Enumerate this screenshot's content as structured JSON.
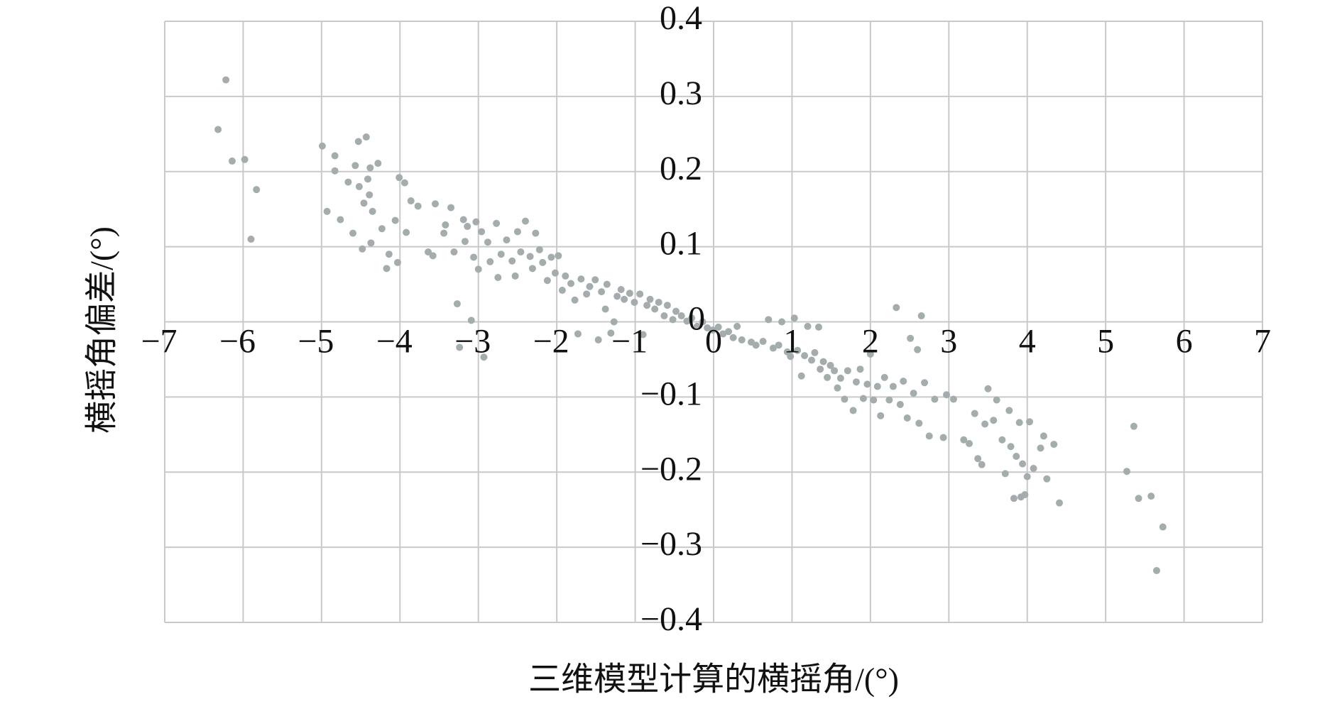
{
  "chart_data": {
    "type": "scatter",
    "x_label": "三维模型计算的横摇角/(°)",
    "y_label": "横摇角偏差/(°)",
    "color": "#a4acae",
    "grid": true,
    "xlim": [
      -7,
      7
    ],
    "ylim": [
      -0.4,
      0.4
    ],
    "xticks": [
      {
        "value": -7,
        "label": "−7"
      },
      {
        "value": -6,
        "label": "−6"
      },
      {
        "value": -5,
        "label": "−5"
      },
      {
        "value": -4,
        "label": "−4"
      },
      {
        "value": -3,
        "label": "−3"
      },
      {
        "value": -2,
        "label": "−2"
      },
      {
        "value": -1,
        "label": "−1"
      },
      0,
      1,
      2,
      3,
      4,
      5,
      6,
      7
    ],
    "yticks": [
      {
        "value": -0.4,
        "label": "−0.4"
      },
      {
        "value": -0.3,
        "label": "−0.3"
      },
      {
        "value": -0.2,
        "label": "−0.2"
      },
      {
        "value": -0.1,
        "label": "−0.1"
      },
      0,
      0.1,
      0.2,
      0.3,
      0.4
    ],
    "x": [
      -6.32,
      -6.22,
      -6.14,
      -5.98,
      -5.9,
      -5.83,
      -4.99,
      -4.93,
      -4.83,
      -4.83,
      -4.76,
      -4.66,
      -4.6,
      -4.57,
      -4.53,
      -4.52,
      -4.48,
      -4.46,
      -4.43,
      -4.41,
      -4.39,
      -4.38,
      -4.37,
      -4.35,
      -4.28,
      -4.23,
      -4.17,
      -4.14,
      -4.06,
      -4.03,
      -4.01,
      -3.94,
      -3.92,
      -3.86,
      -3.77,
      -3.64,
      -3.58,
      -3.55,
      -3.44,
      -3.42,
      -3.35,
      -3.31,
      -3.27,
      -3.24,
      -3.19,
      -3.17,
      -3.14,
      -3.09,
      -3.06,
      -3.03,
      -3.0,
      -2.96,
      -2.93,
      -2.88,
      -2.85,
      -2.77,
      -2.75,
      -2.71,
      -2.64,
      -2.57,
      -2.53,
      -2.5,
      -2.46,
      -2.4,
      -2.34,
      -2.31,
      -2.27,
      -2.22,
      -2.18,
      -2.12,
      -2.07,
      -2.02,
      -1.98,
      -1.93,
      -1.89,
      -1.82,
      -1.77,
      -1.73,
      -1.69,
      -1.62,
      -1.58,
      -1.51,
      -1.47,
      -1.43,
      -1.38,
      -1.36,
      -1.31,
      -1.27,
      -1.23,
      -1.18,
      -1.14,
      -1.07,
      -1.01,
      -0.94,
      -0.9,
      -0.85,
      -0.81,
      -0.75,
      -0.7,
      -0.63,
      -0.59,
      -0.52,
      -0.48,
      -0.41,
      -0.34,
      -0.28,
      -0.21,
      -0.14,
      -0.08,
      -0.01,
      0.06,
      0.12,
      0.19,
      0.25,
      0.3,
      0.36,
      0.48,
      0.54,
      0.63,
      0.7,
      0.76,
      0.83,
      0.87,
      0.94,
      0.98,
      1.03,
      1.07,
      1.12,
      1.16,
      1.2,
      1.25,
      1.29,
      1.34,
      1.36,
      1.4,
      1.45,
      1.49,
      1.54,
      1.58,
      1.62,
      1.67,
      1.71,
      1.78,
      1.82,
      1.87,
      1.91,
      1.96,
      2.0,
      2.04,
      2.09,
      2.13,
      2.18,
      2.24,
      2.29,
      2.33,
      2.38,
      2.42,
      2.47,
      2.51,
      2.55,
      2.6,
      2.62,
      2.65,
      2.69,
      2.75,
      2.82,
      2.93,
      2.97,
      3.06,
      3.19,
      3.26,
      3.33,
      3.37,
      3.42,
      3.46,
      3.5,
      3.57,
      3.61,
      3.68,
      3.72,
      3.77,
      3.79,
      3.83,
      3.86,
      3.9,
      3.92,
      3.94,
      3.97,
      4.0,
      4.03,
      4.08,
      4.17,
      4.21,
      4.25,
      4.34,
      4.41,
      5.27,
      5.36,
      5.42,
      5.58,
      5.65,
      5.73
    ],
    "series": [
      {
        "values": [
          0.256,
          0.322,
          0.214,
          0.216,
          0.11,
          0.176,
          0.234,
          0.147,
          0.221,
          0.201,
          0.136,
          0.186,
          0.118,
          0.208,
          0.24,
          0.18,
          0.097,
          0.158,
          0.246,
          0.19,
          0.169,
          0.205,
          0.105,
          0.147,
          0.211,
          0.124,
          0.071,
          0.09,
          0.135,
          0.079,
          0.192,
          0.185,
          0.119,
          0.161,
          0.154,
          0.093,
          0.088,
          0.157,
          0.118,
          0.129,
          0.152,
          0.093,
          0.024,
          -0.034,
          0.136,
          0.107,
          0.127,
          0.002,
          0.086,
          0.133,
          0.07,
          0.12,
          -0.047,
          0.106,
          0.08,
          0.131,
          0.059,
          0.09,
          0.109,
          0.081,
          0.061,
          0.12,
          0.093,
          0.134,
          0.087,
          0.071,
          0.118,
          0.096,
          0.079,
          0.055,
          0.086,
          0.065,
          0.088,
          0.042,
          0.061,
          0.051,
          0.029,
          -0.016,
          0.057,
          0.037,
          0.047,
          0.056,
          -0.024,
          0.04,
          0.017,
          0.05,
          -0.015,
          0.0,
          0.034,
          0.043,
          0.03,
          0.038,
          0.026,
          0.037,
          -0.017,
          0.022,
          0.03,
          0.017,
          0.026,
          0.008,
          0.022,
          0.003,
          0.014,
          0.008,
          0.001,
          0.005,
          -0.006,
          0.0,
          -0.008,
          -0.011,
          -0.007,
          -0.016,
          -0.013,
          -0.021,
          -0.006,
          -0.024,
          -0.027,
          -0.031,
          -0.026,
          0.003,
          -0.035,
          -0.031,
          0.0,
          -0.04,
          -0.046,
          0.005,
          -0.038,
          -0.072,
          -0.045,
          -0.006,
          -0.051,
          -0.041,
          -0.007,
          -0.063,
          -0.053,
          -0.074,
          -0.058,
          -0.065,
          -0.088,
          -0.075,
          -0.103,
          -0.065,
          -0.118,
          -0.08,
          -0.063,
          -0.102,
          -0.083,
          -0.043,
          -0.104,
          -0.086,
          -0.125,
          -0.074,
          -0.104,
          -0.086,
          0.019,
          -0.11,
          -0.079,
          -0.128,
          -0.022,
          -0.095,
          -0.037,
          -0.135,
          0.008,
          -0.081,
          -0.152,
          -0.103,
          -0.154,
          -0.097,
          -0.103,
          -0.157,
          -0.162,
          -0.122,
          -0.182,
          -0.19,
          -0.136,
          -0.089,
          -0.131,
          -0.104,
          -0.157,
          -0.202,
          -0.118,
          -0.166,
          -0.235,
          -0.179,
          -0.134,
          -0.233,
          -0.189,
          -0.23,
          -0.206,
          -0.133,
          -0.195,
          -0.168,
          -0.152,
          -0.209,
          -0.163,
          -0.241,
          -0.199,
          -0.139,
          -0.235,
          -0.232,
          -0.331,
          -0.273
        ]
      }
    ]
  }
}
